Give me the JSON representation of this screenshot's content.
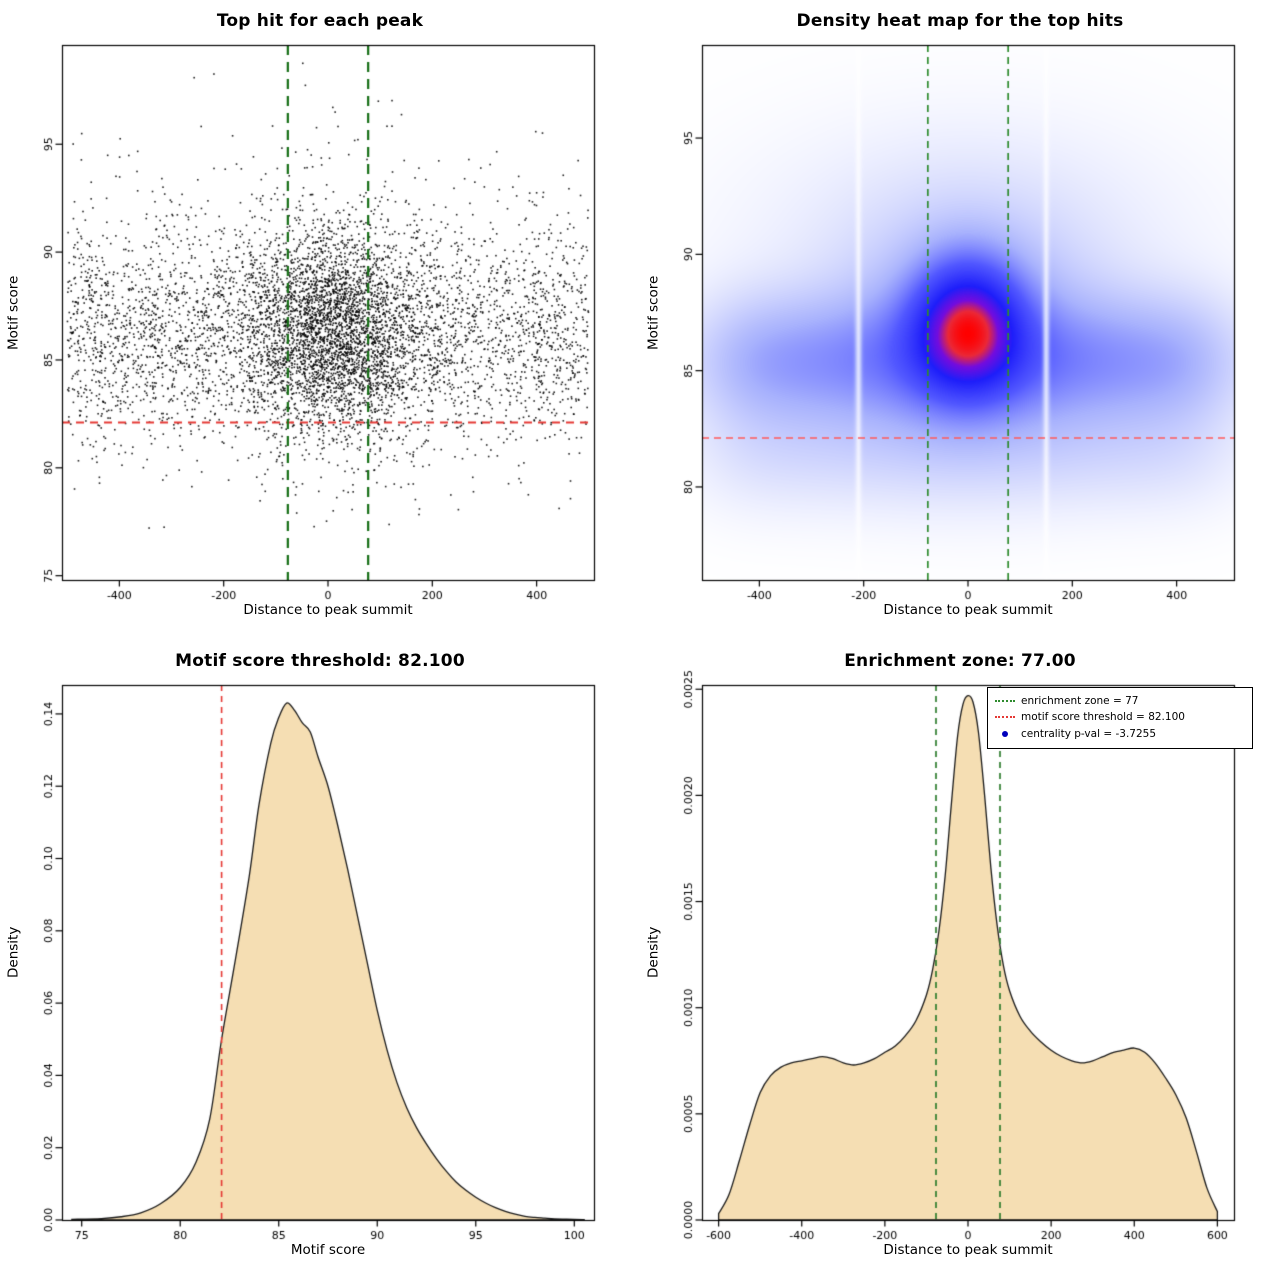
{
  "page": {
    "background": "#ffffff"
  },
  "chart_data": [
    {
      "type": "scatter",
      "title": "Top hit for each peak",
      "xlabel": "Distance to peak summit",
      "ylabel": "Motif score",
      "xlim": [
        -510,
        510
      ],
      "ylim": [
        74.8,
        99.6
      ],
      "xticks": {
        "values": [
          -400,
          -200,
          0,
          200,
          400
        ],
        "labels": [
          "-400",
          "-200",
          "0",
          "200",
          "400"
        ]
      },
      "yticks": {
        "values": [
          75,
          80,
          85,
          90,
          95
        ],
        "labels": [
          "75",
          "80",
          "85",
          "90",
          "95"
        ]
      },
      "grid": false,
      "point_color": "#000000",
      "points": {
        "seed": 20240613,
        "n": 6800,
        "center_frac": 0.44,
        "center_mean": 10,
        "center_sd": 88,
        "x_range": [
          -500,
          500
        ],
        "y_components": [
          {
            "frac": 0.92,
            "mean": 86.2,
            "sd": 2.5
          },
          {
            "frac": 0.08,
            "mean": 87.5,
            "sd": 4.5
          }
        ],
        "y_min": 77.0,
        "y_max": 98.8
      },
      "hline": {
        "y": 82.1,
        "color": "#e53935",
        "dash": [
          8,
          6
        ],
        "width": 1.8
      },
      "vlines": {
        "x": [
          -77,
          77
        ],
        "color": "#156e15",
        "dash": [
          10,
          7
        ],
        "width": 2.2
      }
    },
    {
      "type": "heatmap",
      "title": "Density heat map for the top hits",
      "xlabel": "Distance to peak summit",
      "ylabel": "Motif score",
      "xlim": [
        -510,
        510
      ],
      "ylim": [
        76.0,
        99.0
      ],
      "xticks": {
        "values": [
          -400,
          -200,
          0,
          200,
          400
        ],
        "labels": [
          "-400",
          "-200",
          "0",
          "200",
          "400"
        ]
      },
      "yticks": {
        "values": [
          80,
          85,
          90,
          95
        ],
        "labels": [
          "80",
          "85",
          "90",
          "95"
        ]
      },
      "grid": false,
      "heat": {
        "gamma": 0.75,
        "colormap": [
          [
            0.0,
            [
              255,
              255,
              255
            ]
          ],
          [
            0.28,
            [
              168,
              178,
              253
            ]
          ],
          [
            0.5,
            [
              82,
              88,
              255
            ]
          ],
          [
            0.72,
            [
              30,
              30,
              250
            ]
          ],
          [
            0.85,
            [
              115,
              12,
              222
            ]
          ],
          [
            0.93,
            [
              235,
              40,
              55
            ]
          ],
          [
            1.0,
            [
              255,
              0,
              0
            ]
          ]
        ],
        "components": [
          {
            "kind": "band",
            "y_mean": 85.4,
            "y_sd": 1.85,
            "x_flat": 480,
            "x_pow": 10,
            "w": 1.0
          },
          {
            "kind": "band",
            "y_mean": 81.6,
            "y_sd": 1.7,
            "x_flat": 480,
            "x_pow": 10,
            "w": 0.28
          },
          {
            "kind": "gauss",
            "x_mean": 0,
            "x_sd": 70,
            "y_mean": 86.9,
            "y_sd": 1.9,
            "w": 2.8
          },
          {
            "kind": "gauss",
            "x_mean": 0,
            "x_sd": 150,
            "y_mean": 86.8,
            "y_sd": 3.2,
            "w": 0.7
          },
          {
            "kind": "gauss",
            "x_mean": 0,
            "x_sd": 260,
            "y_mean": 90.5,
            "y_sd": 3.2,
            "w": 0.2
          }
        ],
        "white_gaps": {
          "x": [
            -210,
            150
          ],
          "sd": 4.5,
          "depth": 0.82
        }
      },
      "hline": {
        "y": 82.1,
        "color": "#ff5a5a",
        "dash": [
          7,
          5
        ],
        "width": 1.5
      },
      "vlines": {
        "x": [
          -77,
          77
        ],
        "color": "#2e8b2e",
        "dash": [
          7,
          5
        ],
        "width": 1.7
      }
    },
    {
      "type": "area",
      "title": "Motif score threshold: 82.100",
      "xlabel": "Motif score",
      "ylabel": "Density",
      "xlim": [
        74,
        101
      ],
      "ylim": [
        0,
        0.148
      ],
      "xticks": {
        "values": [
          75,
          80,
          85,
          90,
          95,
          100
        ],
        "labels": [
          "75",
          "80",
          "85",
          "90",
          "95",
          "100"
        ]
      },
      "yticks": {
        "values": [
          0,
          0.02,
          0.04,
          0.06,
          0.08,
          0.1,
          0.12,
          0.14
        ],
        "labels": [
          "0.00",
          "0.02",
          "0.04",
          "0.06",
          "0.08",
          "0.10",
          "0.12",
          "0.14"
        ]
      },
      "grid": false,
      "fill": "#f5deb3",
      "stroke": "#1a1a1a",
      "curve": [
        [
          74.5,
          0.0002
        ],
        [
          76,
          0.0004
        ],
        [
          77,
          0.0009
        ],
        [
          78,
          0.002
        ],
        [
          79,
          0.0045
        ],
        [
          80,
          0.009
        ],
        [
          80.8,
          0.016
        ],
        [
          81.5,
          0.028
        ],
        [
          82.1,
          0.05
        ],
        [
          82.8,
          0.072
        ],
        [
          83.5,
          0.095
        ],
        [
          84,
          0.115
        ],
        [
          84.6,
          0.132
        ],
        [
          85,
          0.139
        ],
        [
          85.4,
          0.143
        ],
        [
          85.8,
          0.141
        ],
        [
          86.2,
          0.1375
        ],
        [
          86.6,
          0.135
        ],
        [
          87,
          0.128
        ],
        [
          87.5,
          0.12
        ],
        [
          88,
          0.109
        ],
        [
          88.5,
          0.097
        ],
        [
          89,
          0.084
        ],
        [
          89.5,
          0.071
        ],
        [
          90,
          0.058
        ],
        [
          90.5,
          0.047
        ],
        [
          91,
          0.038
        ],
        [
          91.5,
          0.031
        ],
        [
          92,
          0.0255
        ],
        [
          92.5,
          0.021
        ],
        [
          93,
          0.017
        ],
        [
          93.5,
          0.0135
        ],
        [
          94,
          0.0105
        ],
        [
          94.5,
          0.0082
        ],
        [
          95,
          0.0063
        ],
        [
          95.5,
          0.0047
        ],
        [
          96,
          0.0034
        ],
        [
          96.5,
          0.0024
        ],
        [
          97,
          0.0016
        ],
        [
          97.5,
          0.001
        ],
        [
          98,
          0.0007
        ],
        [
          98.5,
          0.0005
        ],
        [
          99,
          0.0003
        ],
        [
          100,
          0.0002
        ],
        [
          100.5,
          0.0001
        ]
      ],
      "vlines": {
        "x": [
          82.1
        ],
        "color": "#e53935",
        "dash": [
          6,
          5
        ],
        "width": 1.6
      }
    },
    {
      "type": "area",
      "title": "Enrichment zone: 77.00",
      "xlabel": "Distance to peak summit",
      "ylabel": "Density",
      "xlim": [
        -640,
        640
      ],
      "ylim": [
        0,
        0.00252
      ],
      "xticks": {
        "values": [
          -600,
          -400,
          -200,
          0,
          200,
          400,
          600
        ],
        "labels": [
          "-600",
          "-400",
          "-200",
          "0",
          "200",
          "400",
          "600"
        ]
      },
      "yticks": {
        "values": [
          0,
          0.0005,
          0.001,
          0.0015,
          0.002,
          0.0025
        ],
        "labels": [
          "0.0000",
          "0.0005",
          "0.0010",
          "0.0015",
          "0.0020",
          "0.0025"
        ]
      },
      "grid": false,
      "fill": "#f5deb3",
      "stroke": "#1a1a1a",
      "curve": [
        [
          -600,
          3e-05
        ],
        [
          -575,
          0.00012
        ],
        [
          -550,
          0.00028
        ],
        [
          -525,
          0.00045
        ],
        [
          -500,
          0.0006
        ],
        [
          -475,
          0.00068
        ],
        [
          -450,
          0.00072
        ],
        [
          -425,
          0.00074
        ],
        [
          -400,
          0.00075
        ],
        [
          -375,
          0.00076
        ],
        [
          -350,
          0.00077
        ],
        [
          -325,
          0.00076
        ],
        [
          -300,
          0.00074
        ],
        [
          -275,
          0.00073
        ],
        [
          -250,
          0.00074
        ],
        [
          -225,
          0.00076
        ],
        [
          -200,
          0.00079
        ],
        [
          -175,
          0.00082
        ],
        [
          -150,
          0.00087
        ],
        [
          -125,
          0.00094
        ],
        [
          -100,
          0.00106
        ],
        [
          -85,
          0.00118
        ],
        [
          -70,
          0.00136
        ],
        [
          -55,
          0.00162
        ],
        [
          -40,
          0.00196
        ],
        [
          -25,
          0.00228
        ],
        [
          -12,
          0.00243
        ],
        [
          0,
          0.00247
        ],
        [
          12,
          0.00244
        ],
        [
          25,
          0.0023
        ],
        [
          40,
          0.002
        ],
        [
          55,
          0.00166
        ],
        [
          70,
          0.00139
        ],
        [
          85,
          0.0012
        ],
        [
          100,
          0.00108
        ],
        [
          125,
          0.00096
        ],
        [
          150,
          0.00089
        ],
        [
          175,
          0.00084
        ],
        [
          200,
          0.0008
        ],
        [
          225,
          0.00077
        ],
        [
          250,
          0.00075
        ],
        [
          275,
          0.00074
        ],
        [
          300,
          0.00075
        ],
        [
          325,
          0.00077
        ],
        [
          350,
          0.00079
        ],
        [
          375,
          0.0008
        ],
        [
          400,
          0.00081
        ],
        [
          425,
          0.00079
        ],
        [
          450,
          0.00074
        ],
        [
          475,
          0.00067
        ],
        [
          500,
          0.00059
        ],
        [
          525,
          0.00048
        ],
        [
          550,
          0.00032
        ],
        [
          575,
          0.00015
        ],
        [
          600,
          4e-05
        ]
      ],
      "vlines": {
        "x": [
          -77,
          77
        ],
        "color": "#2e7d2e",
        "dash": [
          6,
          5
        ],
        "width": 1.7
      },
      "legend": [
        {
          "label": "enrichment zone = 77",
          "marker": "line",
          "color": "#2e8b2e"
        },
        {
          "label": "motif score threshold = 82.100",
          "marker": "line",
          "color": "#e53935"
        },
        {
          "label": "centrality p-val = -3.7255",
          "marker": "point",
          "color": "#0000bb"
        }
      ]
    }
  ]
}
